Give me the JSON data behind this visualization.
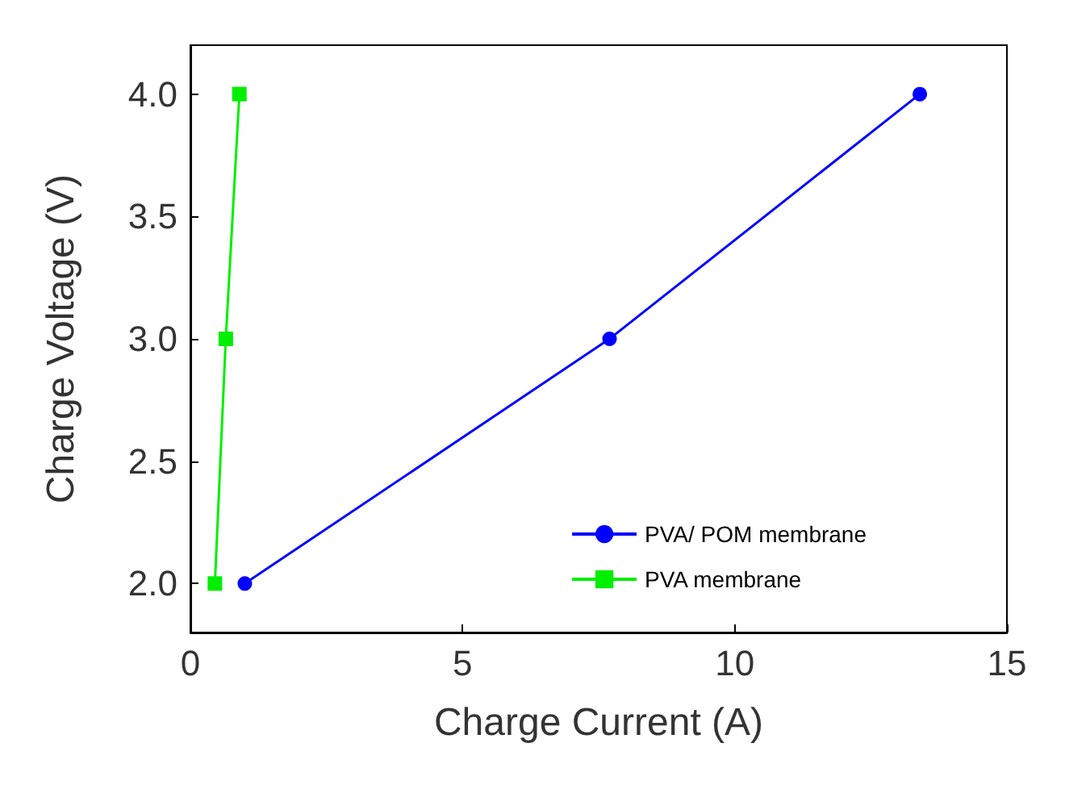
{
  "chart_data": {
    "type": "line",
    "xlabel": "Charge Current (A)",
    "ylabel": "Charge Voltage (V)",
    "xlim": [
      0,
      15
    ],
    "xticks": [
      0,
      5,
      10,
      15
    ],
    "ylim": [
      1.8,
      4.2
    ],
    "yticks": [
      {
        "value": 2,
        "label": "2.0"
      },
      {
        "value": 2.5,
        "label": "2.5"
      },
      {
        "value": 3,
        "label": "3.0"
      },
      {
        "value": 3.5,
        "label": "3.5"
      },
      {
        "value": 4,
        "label": "4.0"
      }
    ],
    "grid": false,
    "legend": "bottom right",
    "series": [
      {
        "name": "PVA/ POM membrane",
        "color": "#0000ff",
        "marker": "circle",
        "x": [
          1.0,
          7.7,
          13.4
        ],
        "values": [
          2.0,
          3.0,
          4.0
        ]
      },
      {
        "name": "PVA membrane",
        "color": "#00ee00",
        "marker": "square",
        "x": [
          0.45,
          0.65,
          0.9
        ],
        "values": [
          2.0,
          3.0,
          4.0
        ]
      }
    ]
  }
}
